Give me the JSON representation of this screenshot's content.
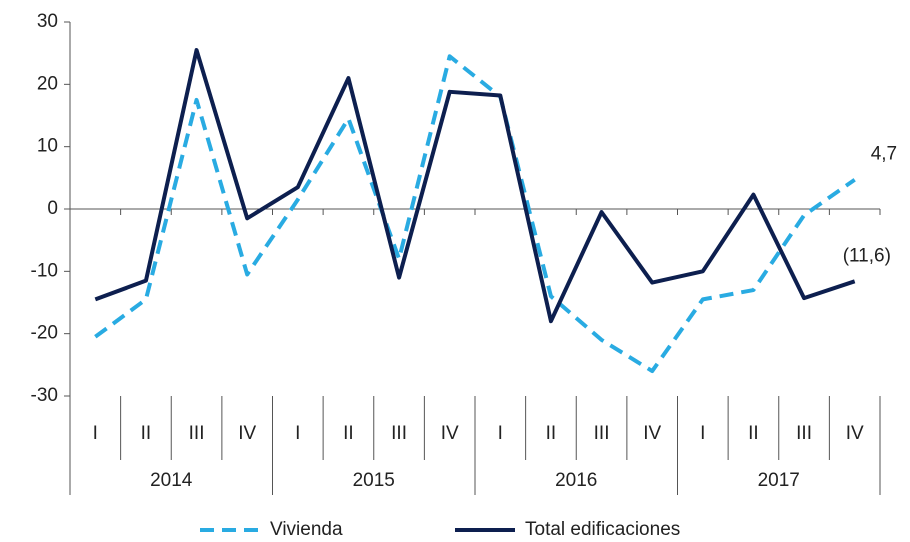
{
  "chart_data": {
    "type": "line",
    "categories": [
      "I",
      "II",
      "III",
      "IV",
      "I",
      "II",
      "III",
      "IV",
      "I",
      "II",
      "III",
      "IV",
      "I",
      "II",
      "III",
      "IV"
    ],
    "year_groups": [
      "2014",
      "2015",
      "2016",
      "2017"
    ],
    "series": [
      {
        "name": "Vivienda",
        "color": "#29abe2",
        "dashed": true,
        "values": [
          -20.5,
          -14.5,
          17.5,
          -10.5,
          1.5,
          14.5,
          -8,
          24.5,
          18,
          -14,
          -21,
          -26,
          -14.5,
          -13,
          -1,
          4.7
        ],
        "value_labels": [
          null,
          null,
          null,
          null,
          null,
          null,
          null,
          null,
          null,
          null,
          null,
          null,
          null,
          null,
          null,
          "4,7"
        ]
      },
      {
        "name": "Total edificaciones",
        "color": "#0d1f4f",
        "dashed": false,
        "values": [
          -14.5,
          -11.5,
          25.5,
          -1.5,
          3.5,
          21,
          -11,
          18.8,
          18.2,
          -18,
          -0.5,
          -11.8,
          -10,
          2.3,
          -14.3,
          -11.6
        ],
        "value_labels": [
          null,
          null,
          null,
          null,
          null,
          null,
          null,
          null,
          null,
          null,
          null,
          null,
          null,
          null,
          null,
          "(11,6)"
        ]
      }
    ],
    "ylim": [
      -30,
      30
    ],
    "yticks": [
      -30,
      -20,
      -10,
      0,
      10,
      20,
      30
    ],
    "legend": "bottom"
  }
}
